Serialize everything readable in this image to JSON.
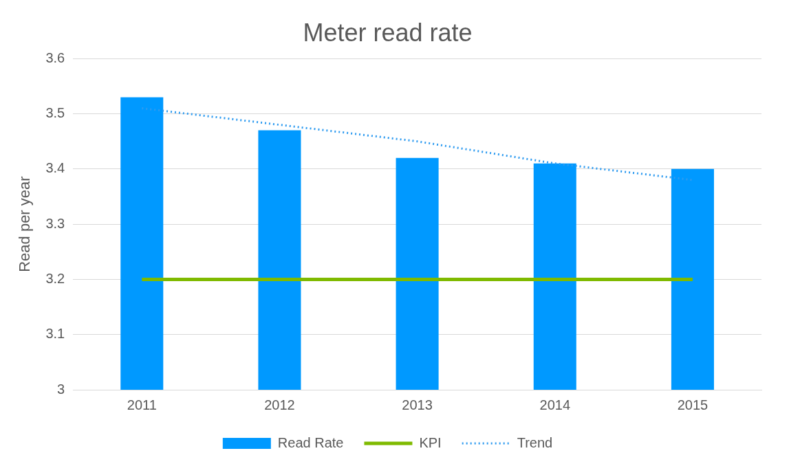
{
  "chart_data": {
    "type": "bar",
    "title": "Meter read rate",
    "ylabel": "Read per year",
    "categories": [
      "2011",
      "2012",
      "2013",
      "2014",
      "2015"
    ],
    "series": [
      {
        "name": "Read Rate",
        "color": "#0099ff",
        "values": [
          3.53,
          3.47,
          3.42,
          3.41,
          3.4
        ]
      },
      {
        "name": "KPI",
        "type": "line",
        "color": "#7fba00",
        "line_style": "solid",
        "values": [
          3.2,
          3.2,
          3.2,
          3.2,
          3.2
        ]
      },
      {
        "name": "Trend",
        "type": "line",
        "color": "#2e9bf0",
        "line_style": "dotted",
        "values": [
          3.51,
          3.48,
          3.45,
          3.41,
          3.38
        ]
      }
    ],
    "ylim": [
      3,
      3.6
    ],
    "yticks": [
      3,
      3.1,
      3.2,
      3.3,
      3.4,
      3.5,
      3.6
    ],
    "grid": "y",
    "legend": "bottom",
    "marker": "none"
  }
}
